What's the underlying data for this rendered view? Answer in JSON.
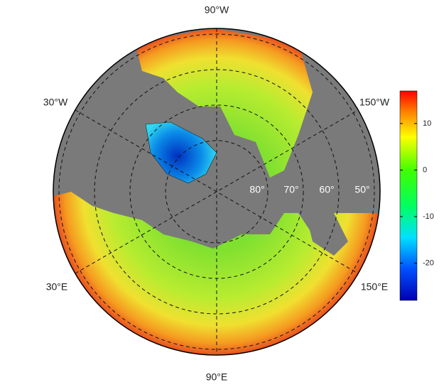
{
  "map": {
    "meridian_labels": [
      "90°W",
      "30°W",
      "150°W",
      "30°E",
      "150°E",
      "90°E"
    ],
    "parallel_labels": [
      "80°",
      "70°",
      "60°",
      "50°"
    ],
    "colorbar": {
      "lim": [
        -28,
        17
      ],
      "ticks": [
        10,
        0,
        -10,
        -20
      ]
    }
  }
}
